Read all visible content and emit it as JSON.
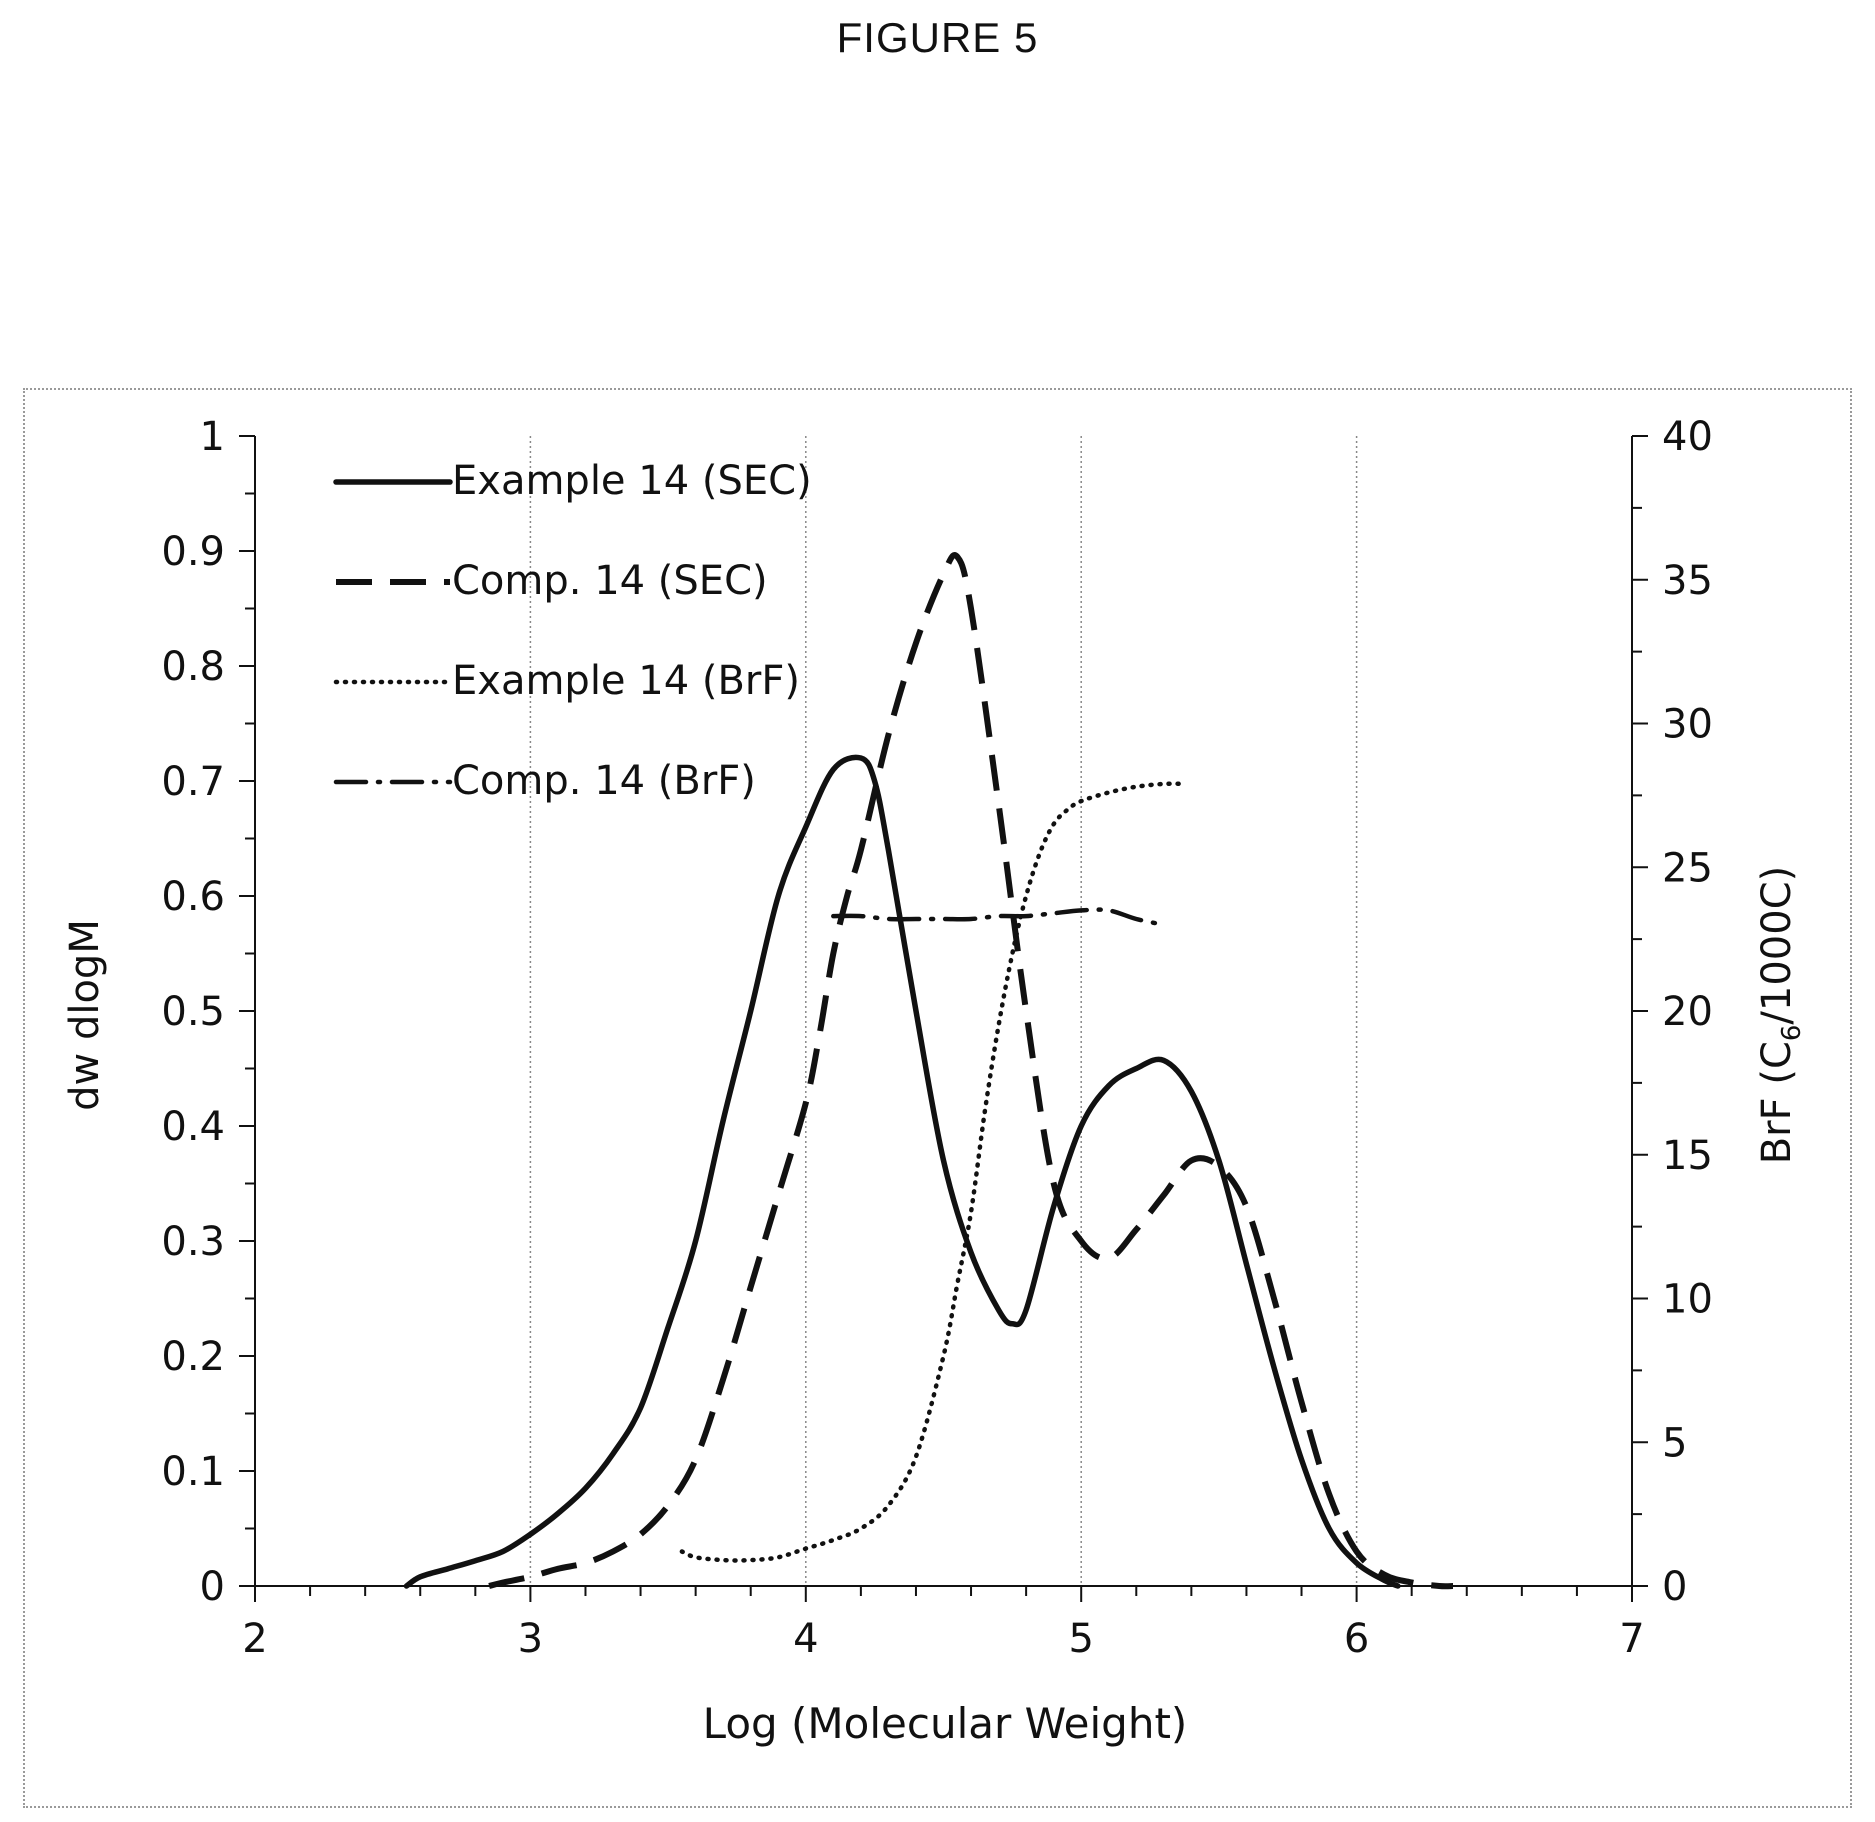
{
  "page": {
    "figure_title": "FIGURE 5"
  },
  "chart_data": {
    "type": "line",
    "title": "",
    "xlabel": "Log (Molecular Weight)",
    "ylabel": "dw dlogM",
    "y2label": "BrF (C6/1000C)",
    "y2label_parts": {
      "before_sub": "BrF (C",
      "sub": "6",
      "after_sub": "/1000C)"
    },
    "xlim": [
      2,
      7
    ],
    "ylim": [
      0,
      1
    ],
    "y2lim": [
      0,
      40
    ],
    "x_ticks": [
      "2",
      "3",
      "4",
      "5",
      "6",
      "7"
    ],
    "y_ticks": [
      "0",
      "0.1",
      "0.2",
      "0.3",
      "0.4",
      "0.5",
      "0.6",
      "0.7",
      "0.8",
      "0.9",
      "1"
    ],
    "y2_ticks": [
      "0",
      "5",
      "10",
      "15",
      "20",
      "25",
      "30",
      "35",
      "40"
    ],
    "grid": "vertical dotted lines at major x ticks",
    "legend_position": "top-left",
    "series": [
      {
        "name": "Example 14 (SEC)",
        "axis": "left",
        "style": "solid",
        "x": [
          2.55,
          2.6,
          2.7,
          2.8,
          2.9,
          3.0,
          3.1,
          3.2,
          3.3,
          3.4,
          3.5,
          3.6,
          3.7,
          3.8,
          3.9,
          4.0,
          4.1,
          4.2,
          4.25,
          4.3,
          4.4,
          4.5,
          4.6,
          4.7,
          4.75,
          4.8,
          4.9,
          5.0,
          5.1,
          5.2,
          5.3,
          5.4,
          5.5,
          5.6,
          5.7,
          5.8,
          5.9,
          6.0,
          6.1,
          6.15
        ],
        "y": [
          0.0,
          0.008,
          0.015,
          0.022,
          0.03,
          0.045,
          0.063,
          0.085,
          0.115,
          0.155,
          0.225,
          0.3,
          0.405,
          0.5,
          0.6,
          0.66,
          0.71,
          0.72,
          0.7,
          0.64,
          0.5,
          0.37,
          0.29,
          0.24,
          0.228,
          0.24,
          0.33,
          0.4,
          0.435,
          0.45,
          0.457,
          0.43,
          0.37,
          0.28,
          0.19,
          0.11,
          0.05,
          0.02,
          0.005,
          0.0
        ]
      },
      {
        "name": "Comp. 14 (SEC)",
        "axis": "left",
        "style": "dashed",
        "x": [
          2.85,
          2.9,
          3.0,
          3.1,
          3.2,
          3.3,
          3.4,
          3.5,
          3.6,
          3.7,
          3.8,
          3.9,
          4.0,
          4.05,
          4.1,
          4.15,
          4.2,
          4.3,
          4.4,
          4.5,
          4.55,
          4.6,
          4.7,
          4.8,
          4.9,
          5.0,
          5.1,
          5.2,
          5.3,
          5.4,
          5.5,
          5.6,
          5.7,
          5.8,
          5.9,
          6.0,
          6.1,
          6.2,
          6.3,
          6.35
        ],
        "y": [
          0.0,
          0.003,
          0.008,
          0.015,
          0.02,
          0.03,
          0.045,
          0.07,
          0.11,
          0.18,
          0.26,
          0.34,
          0.42,
          0.48,
          0.55,
          0.6,
          0.64,
          0.74,
          0.82,
          0.88,
          0.895,
          0.85,
          0.68,
          0.5,
          0.35,
          0.3,
          0.285,
          0.31,
          0.34,
          0.37,
          0.365,
          0.33,
          0.25,
          0.16,
          0.08,
          0.03,
          0.01,
          0.003,
          0.0,
          0.0
        ]
      },
      {
        "name": "Example 14 (BrF)",
        "axis": "right",
        "style": "dotted",
        "x": [
          3.55,
          3.6,
          3.7,
          3.8,
          3.9,
          4.0,
          4.1,
          4.2,
          4.3,
          4.4,
          4.5,
          4.55,
          4.6,
          4.65,
          4.7,
          4.75,
          4.8,
          4.85,
          4.9,
          4.95,
          5.0,
          5.1,
          5.2,
          5.3,
          5.38
        ],
        "y": [
          1.2,
          1.0,
          0.9,
          0.9,
          1.0,
          1.3,
          1.6,
          2.0,
          2.8,
          4.5,
          8.0,
          10.5,
          13.0,
          16.5,
          19.5,
          22.0,
          24.0,
          25.5,
          26.5,
          27.0,
          27.3,
          27.6,
          27.8,
          27.9,
          27.9
        ]
      },
      {
        "name": "Comp. 14 (BrF)",
        "axis": "right",
        "style": "dash-dot",
        "x": [
          4.1,
          4.2,
          4.3,
          4.4,
          4.5,
          4.6,
          4.7,
          4.8,
          4.9,
          5.0,
          5.1,
          5.2,
          5.3
        ],
        "y": [
          23.3,
          23.3,
          23.2,
          23.2,
          23.2,
          23.2,
          23.3,
          23.3,
          23.4,
          23.5,
          23.5,
          23.2,
          23.0
        ]
      }
    ]
  }
}
